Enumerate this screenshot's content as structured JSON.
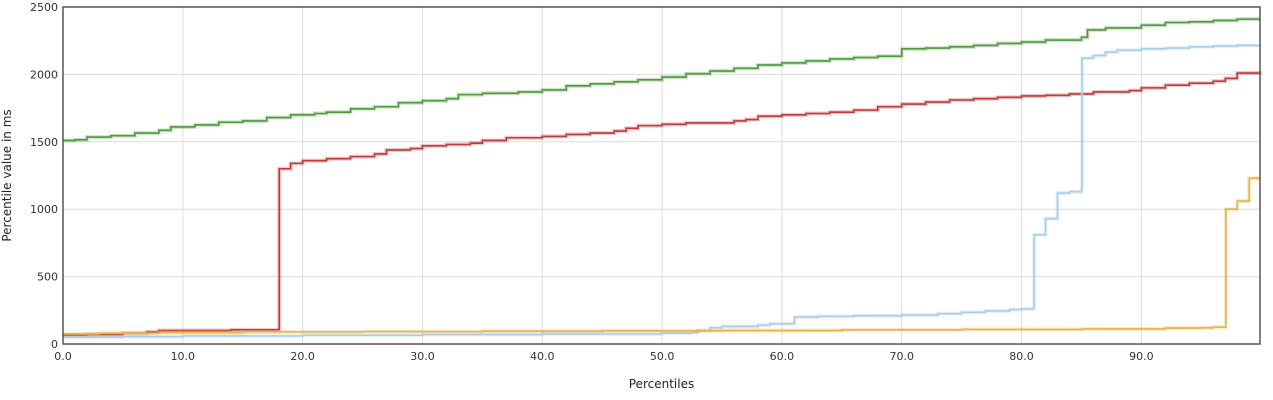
{
  "chart_data": {
    "type": "line",
    "title": "",
    "xlabel": "Percentiles",
    "ylabel": "Percentile value in ms",
    "xlim": [
      0,
      99.9
    ],
    "ylim": [
      0,
      2500
    ],
    "x_ticks": [
      0,
      10,
      20,
      30,
      40,
      50,
      60,
      70,
      80,
      90
    ],
    "x_tick_labels": [
      "0.0",
      "10.0",
      "20.0",
      "30.0",
      "40.0",
      "50.0",
      "60.0",
      "70.0",
      "80.0",
      "90.0"
    ],
    "y_ticks": [
      0,
      500,
      1000,
      1500,
      2000,
      2500
    ],
    "y_tick_labels": [
      "0",
      "500",
      "1000",
      "1500",
      "2000",
      "2500"
    ],
    "grid": true,
    "step": true,
    "series": [
      {
        "color": "#4e9a3c",
        "points": [
          [
            0,
            1510
          ],
          [
            1,
            1515
          ],
          [
            2,
            1535
          ],
          [
            4,
            1545
          ],
          [
            6,
            1565
          ],
          [
            8,
            1585
          ],
          [
            9,
            1610
          ],
          [
            11,
            1625
          ],
          [
            13,
            1645
          ],
          [
            15,
            1655
          ],
          [
            17,
            1680
          ],
          [
            19,
            1700
          ],
          [
            21,
            1710
          ],
          [
            22,
            1720
          ],
          [
            24,
            1745
          ],
          [
            26,
            1760
          ],
          [
            28,
            1790
          ],
          [
            30,
            1805
          ],
          [
            32,
            1820
          ],
          [
            33,
            1850
          ],
          [
            35,
            1860
          ],
          [
            38,
            1870
          ],
          [
            40,
            1885
          ],
          [
            42,
            1915
          ],
          [
            44,
            1930
          ],
          [
            46,
            1945
          ],
          [
            48,
            1960
          ],
          [
            50,
            1980
          ],
          [
            52,
            2005
          ],
          [
            54,
            2025
          ],
          [
            56,
            2045
          ],
          [
            58,
            2070
          ],
          [
            60,
            2085
          ],
          [
            62,
            2100
          ],
          [
            64,
            2115
          ],
          [
            66,
            2125
          ],
          [
            68,
            2135
          ],
          [
            70,
            2190
          ],
          [
            72,
            2195
          ],
          [
            74,
            2205
          ],
          [
            76,
            2215
          ],
          [
            78,
            2230
          ],
          [
            80,
            2240
          ],
          [
            82,
            2255
          ],
          [
            85,
            2275
          ],
          [
            85.5,
            2330
          ],
          [
            87,
            2345
          ],
          [
            90,
            2365
          ],
          [
            92,
            2385
          ],
          [
            94,
            2390
          ],
          [
            96,
            2400
          ],
          [
            98,
            2410
          ],
          [
            99.9,
            2410
          ]
        ]
      },
      {
        "color": "#c0393b",
        "points": [
          [
            0,
            65
          ],
          [
            2,
            70
          ],
          [
            5,
            80
          ],
          [
            7,
            90
          ],
          [
            8,
            100
          ],
          [
            14,
            105
          ],
          [
            18,
            110
          ],
          [
            18.05,
            1300
          ],
          [
            19,
            1340
          ],
          [
            20,
            1360
          ],
          [
            22,
            1375
          ],
          [
            24,
            1390
          ],
          [
            26,
            1410
          ],
          [
            27,
            1440
          ],
          [
            29,
            1450
          ],
          [
            30,
            1470
          ],
          [
            32,
            1480
          ],
          [
            34,
            1490
          ],
          [
            35,
            1510
          ],
          [
            37,
            1530
          ],
          [
            40,
            1540
          ],
          [
            42,
            1555
          ],
          [
            44,
            1565
          ],
          [
            46,
            1580
          ],
          [
            47,
            1600
          ],
          [
            48,
            1620
          ],
          [
            50,
            1630
          ],
          [
            52,
            1640
          ],
          [
            56,
            1655
          ],
          [
            57,
            1665
          ],
          [
            58,
            1690
          ],
          [
            60,
            1700
          ],
          [
            62,
            1710
          ],
          [
            64,
            1720
          ],
          [
            66,
            1735
          ],
          [
            68,
            1760
          ],
          [
            70,
            1780
          ],
          [
            72,
            1795
          ],
          [
            74,
            1810
          ],
          [
            76,
            1820
          ],
          [
            78,
            1830
          ],
          [
            80,
            1840
          ],
          [
            82,
            1845
          ],
          [
            84,
            1855
          ],
          [
            86,
            1870
          ],
          [
            89,
            1880
          ],
          [
            90,
            1900
          ],
          [
            92,
            1920
          ],
          [
            94,
            1935
          ],
          [
            96,
            1950
          ],
          [
            97,
            1970
          ],
          [
            98,
            2010
          ],
          [
            99.9,
            2025
          ]
        ]
      },
      {
        "color": "#a8cde9",
        "points": [
          [
            0,
            50
          ],
          [
            5,
            55
          ],
          [
            10,
            60
          ],
          [
            20,
            65
          ],
          [
            30,
            70
          ],
          [
            40,
            75
          ],
          [
            50,
            80
          ],
          [
            52.5,
            85
          ],
          [
            53,
            100
          ],
          [
            54,
            120
          ],
          [
            55,
            130
          ],
          [
            58,
            140
          ],
          [
            59,
            150
          ],
          [
            61,
            160
          ],
          [
            61.05,
            200
          ],
          [
            63,
            205
          ],
          [
            66,
            210
          ],
          [
            70,
            215
          ],
          [
            73,
            225
          ],
          [
            75,
            235
          ],
          [
            77,
            245
          ],
          [
            79,
            255
          ],
          [
            80,
            260
          ],
          [
            81,
            270
          ],
          [
            81.05,
            810
          ],
          [
            82,
            930
          ],
          [
            83,
            1120
          ],
          [
            84,
            1130
          ],
          [
            85,
            1150
          ],
          [
            85.05,
            2120
          ],
          [
            86,
            2140
          ],
          [
            87,
            2165
          ],
          [
            88,
            2180
          ],
          [
            90,
            2190
          ],
          [
            92,
            2195
          ],
          [
            94,
            2205
          ],
          [
            96,
            2210
          ],
          [
            98,
            2215
          ],
          [
            99.9,
            2220
          ]
        ]
      },
      {
        "color": "#e6b444",
        "points": [
          [
            0,
            75
          ],
          [
            3,
            80
          ],
          [
            8,
            85
          ],
          [
            15,
            90
          ],
          [
            25,
            92
          ],
          [
            35,
            95
          ],
          [
            45,
            98
          ],
          [
            55,
            100
          ],
          [
            65,
            105
          ],
          [
            75,
            108
          ],
          [
            85,
            112
          ],
          [
            92,
            118
          ],
          [
            95,
            120
          ],
          [
            96,
            125
          ],
          [
            97,
            125
          ],
          [
            97.05,
            1000
          ],
          [
            98,
            1060
          ],
          [
            99,
            1230
          ],
          [
            99.9,
            1230
          ]
        ]
      }
    ]
  }
}
